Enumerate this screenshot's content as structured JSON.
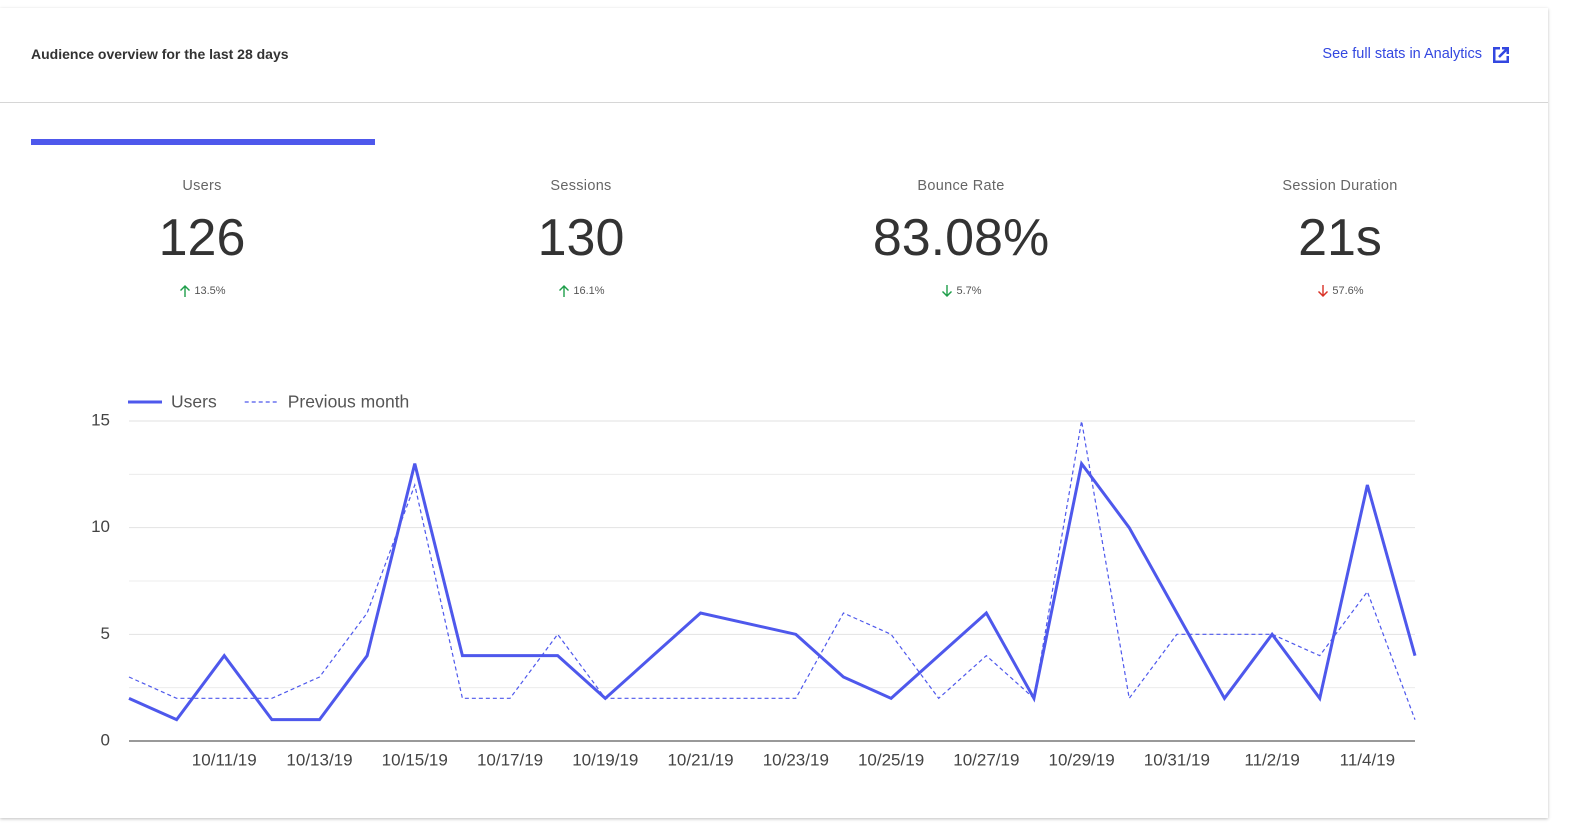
{
  "header": {
    "title": "Audience overview for the last 28 days",
    "link": "See full stats in Analytics"
  },
  "metrics": [
    {
      "label": "Users",
      "value": "126",
      "change": "13.5%",
      "direction": "up",
      "color": "#1e9e4a"
    },
    {
      "label": "Sessions",
      "value": "130",
      "change": "16.1%",
      "direction": "up",
      "color": "#1e9e4a"
    },
    {
      "label": "Bounce Rate",
      "value": "83.08%",
      "change": "5.7%",
      "direction": "down",
      "color": "#1e9e4a"
    },
    {
      "label": "Session Duration",
      "value": "21s",
      "change": "57.6%",
      "direction": "down",
      "color": "#d93025"
    }
  ],
  "chart_data": {
    "type": "line",
    "categories": [
      null,
      null,
      "10/11/19",
      null,
      "10/13/19",
      null,
      "10/15/19",
      null,
      "10/17/19",
      null,
      "10/19/19",
      null,
      "10/21/19",
      null,
      "10/23/19",
      null,
      "10/25/19",
      null,
      "10/27/19",
      null,
      "10/29/19",
      null,
      "10/31/19",
      null,
      "11/2/19",
      null,
      "11/4/19",
      null
    ],
    "series": [
      {
        "name": "Users",
        "color": "#4e58ec",
        "dashed": false,
        "values": [
          2,
          1,
          4,
          1,
          1,
          4,
          13,
          4,
          4,
          4,
          2,
          4,
          6,
          5.5,
          5,
          3,
          2,
          4,
          6,
          2,
          13,
          10,
          6,
          2,
          5,
          2,
          12,
          4
        ]
      },
      {
        "name": "Previous month",
        "color": "#4e58ec",
        "dashed": true,
        "values": [
          3,
          2,
          2,
          2,
          3,
          6,
          12,
          2,
          2,
          5,
          2,
          2,
          2,
          2,
          2,
          6,
          5,
          2,
          4,
          2,
          15,
          2,
          5,
          5,
          5,
          4,
          7,
          1
        ]
      }
    ],
    "ylim": [
      0,
      15
    ],
    "yticks": [
      0,
      5,
      10,
      15
    ],
    "grid": true,
    "minor_grid": true,
    "legend": "top-left"
  }
}
